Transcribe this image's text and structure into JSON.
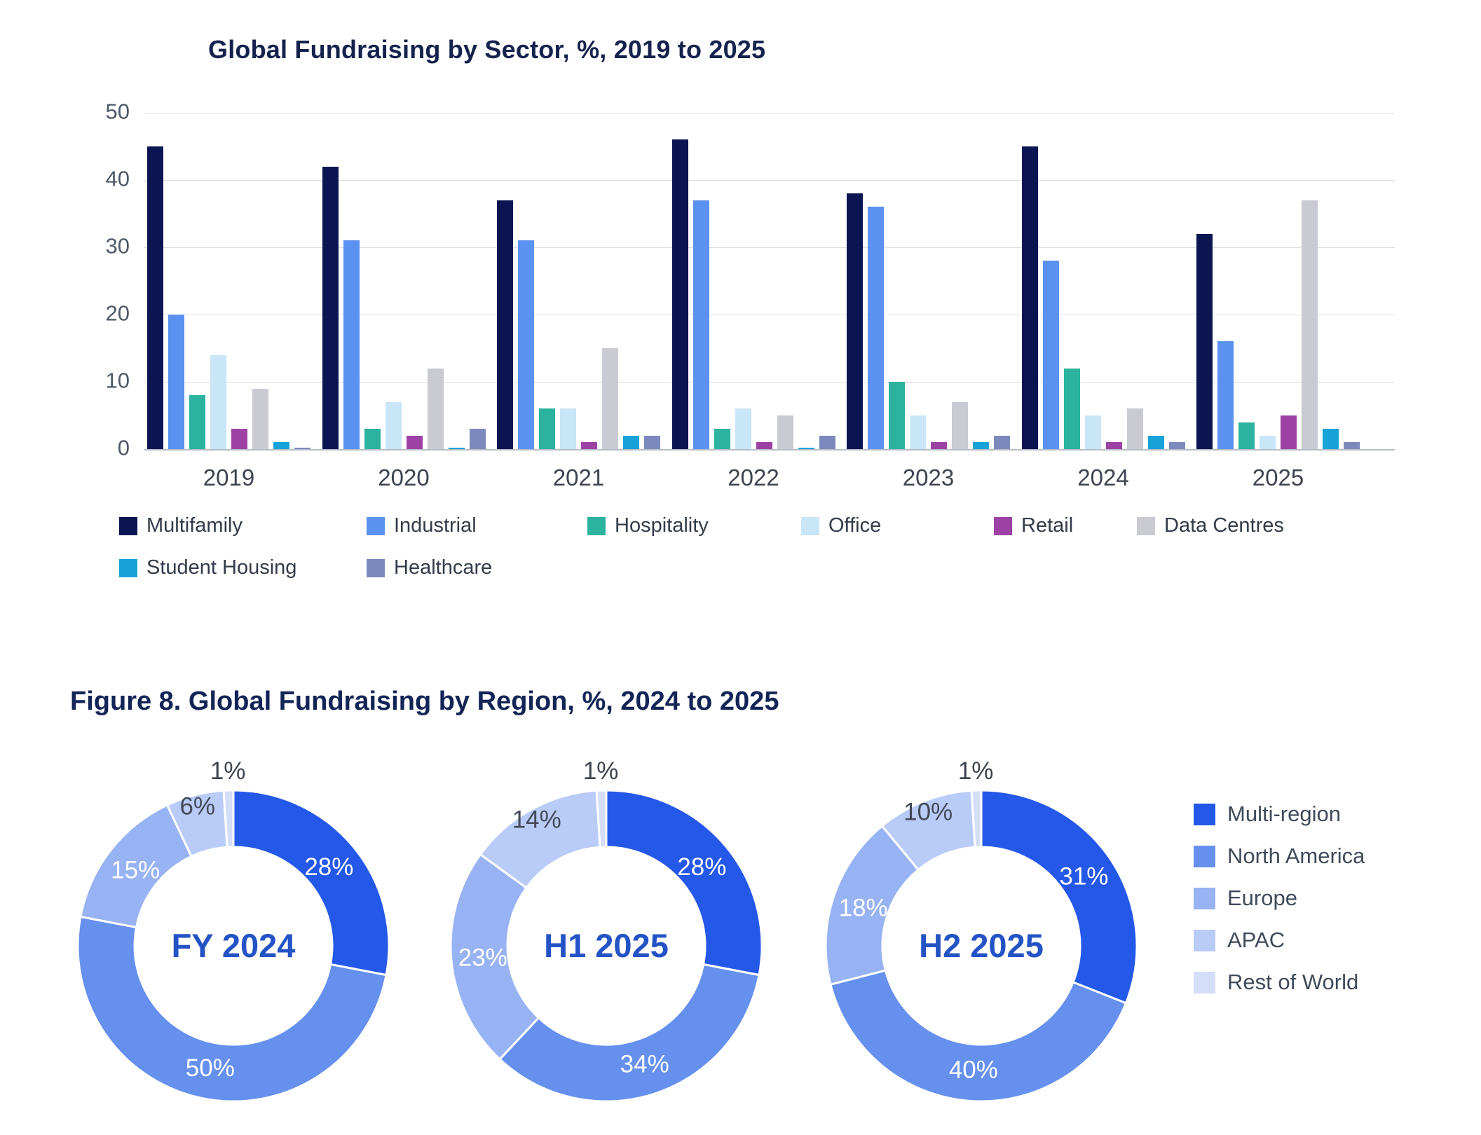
{
  "chart_data": [
    {
      "type": "bar",
      "title": "Global Fundraising by Sector, %, 2019 to 2025",
      "categories": [
        "2019",
        "2020",
        "2021",
        "2022",
        "2023",
        "2024",
        "2025"
      ],
      "series": [
        {
          "name": "Multifamily",
          "color": "#0b1551",
          "values": [
            45,
            42,
            37,
            46,
            38,
            45,
            32
          ]
        },
        {
          "name": "Industrial",
          "color": "#5b91f0",
          "values": [
            20,
            31,
            31,
            37,
            36,
            28,
            16
          ]
        },
        {
          "name": "Hospitality",
          "color": "#2cb3a0",
          "values": [
            8,
            3,
            6,
            3,
            10,
            12,
            4
          ]
        },
        {
          "name": "Office",
          "color": "#c9e5f8",
          "values": [
            14,
            7,
            6,
            6,
            5,
            5,
            2
          ]
        },
        {
          "name": "Retail",
          "color": "#9d41a4",
          "values": [
            3,
            2,
            1,
            1,
            1,
            1,
            5
          ]
        },
        {
          "name": "Data Centres",
          "color": "#c9cad2",
          "values": [
            9,
            12,
            15,
            5,
            7,
            6,
            37
          ]
        },
        {
          "name": "Student Housing",
          "color": "#17a3d8",
          "values": [
            1,
            0.2,
            2,
            0.2,
            1,
            2,
            3
          ]
        },
        {
          "name": "Healthcare",
          "color": "#7b89bd",
          "values": [
            0.2,
            3,
            2,
            2,
            2,
            1,
            1
          ]
        }
      ],
      "ylim": [
        0,
        50
      ],
      "y_ticks": [
        0,
        10,
        20,
        30,
        40,
        50
      ],
      "grid": true,
      "legend_position": "bottom"
    },
    {
      "type": "pie",
      "title": "FY 2024",
      "labels": [
        "Multi-region",
        "North America",
        "Europe",
        "APAC",
        "Rest of World"
      ],
      "values": [
        28,
        50,
        15,
        6,
        1
      ],
      "display_values": [
        "28%",
        "50%",
        "15%",
        "6%",
        "1%"
      ]
    },
    {
      "type": "pie",
      "title": "H1 2025",
      "labels": [
        "Multi-region",
        "North America",
        "Europe",
        "APAC",
        "Rest of World"
      ],
      "values": [
        28,
        34,
        23,
        14,
        1
      ],
      "display_values": [
        "28%",
        "34%",
        "23%",
        "14%",
        "1%"
      ]
    },
    {
      "type": "pie",
      "title": "H2 2025",
      "labels": [
        "Multi-region",
        "North America",
        "Europe",
        "APAC",
        "Rest of World"
      ],
      "values": [
        31,
        40,
        18,
        10,
        1
      ],
      "display_values": [
        "31%",
        "40%",
        "18%",
        "10%",
        "1%"
      ]
    }
  ],
  "region_figure": {
    "title": "Figure 8. Global Fundraising by Region, %, 2024 to 2025",
    "legend": [
      {
        "label": "Multi-region",
        "color": "#2458e8"
      },
      {
        "label": "North America",
        "color": "#6590ee"
      },
      {
        "label": "Europe",
        "color": "#98b3f3"
      },
      {
        "label": "APAC",
        "color": "#b9cbf7"
      },
      {
        "label": "Rest of World",
        "color": "#d4def9"
      }
    ]
  },
  "styles": {
    "center_label_color": "#2453c5",
    "outside_label_color": "#3c434e",
    "inside_light_label_color": "#424a57"
  }
}
